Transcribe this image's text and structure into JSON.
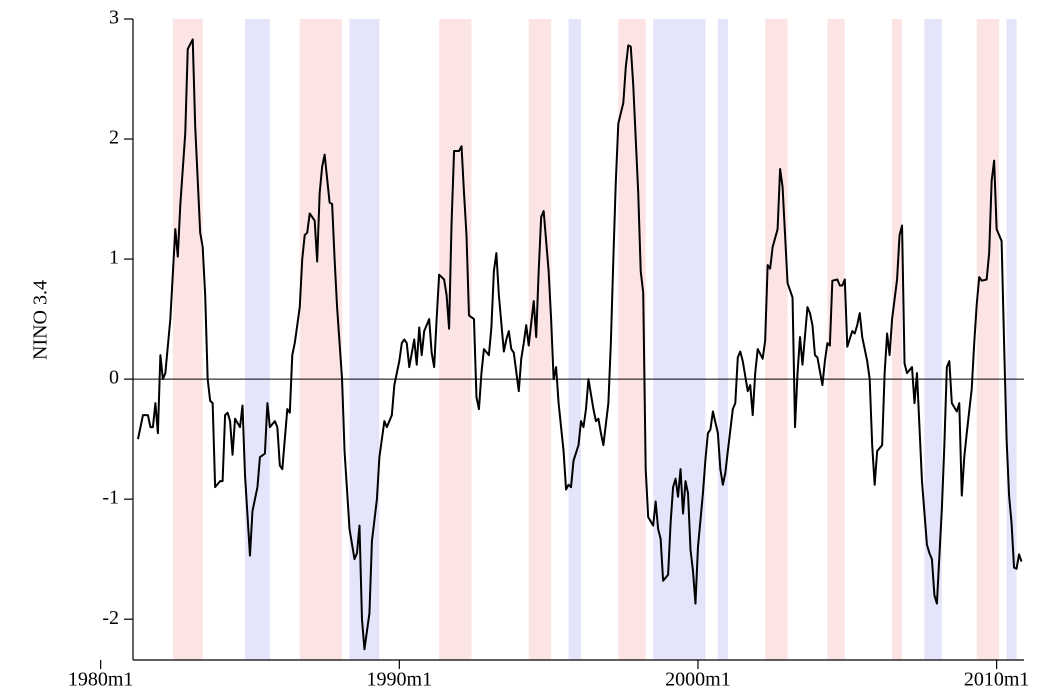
{
  "chart_data": {
    "type": "line",
    "ylabel": "NINO 3.4",
    "color": "#000000",
    "xlim": [
      253,
      611
    ],
    "ylim": [
      -2.34,
      3
    ],
    "xticks": [
      {
        "value": 240,
        "label": "1980m1"
      },
      {
        "value": 360,
        "label": "1990m1"
      },
      {
        "value": 480,
        "label": "2000m1"
      },
      {
        "value": 600,
        "label": "2010m1"
      }
    ],
    "yticks": [
      -2,
      -1,
      0,
      1,
      2,
      3
    ],
    "yline": 0,
    "bands": [
      {
        "start": 269,
        "end": 281,
        "color": "#fde4e4"
      },
      {
        "start": 298,
        "end": 308,
        "color": "#e4e4fa"
      },
      {
        "start": 320,
        "end": 337,
        "color": "#fde4e4"
      },
      {
        "start": 340,
        "end": 352,
        "color": "#e4e4fa"
      },
      {
        "start": 376,
        "end": 389,
        "color": "#fde4e4"
      },
      {
        "start": 412,
        "end": 421,
        "color": "#fde4e4"
      },
      {
        "start": 428,
        "end": 433,
        "color": "#e4e4fa"
      },
      {
        "start": 448,
        "end": 459,
        "color": "#fde4e4"
      },
      {
        "start": 462,
        "end": 483,
        "color": "#e4e4fa"
      },
      {
        "start": 488,
        "end": 492,
        "color": "#e4e4fa"
      },
      {
        "start": 507,
        "end": 516,
        "color": "#fde4e4"
      },
      {
        "start": 532,
        "end": 539,
        "color": "#fde4e4"
      },
      {
        "start": 558,
        "end": 562,
        "color": "#fde4e4"
      },
      {
        "start": 571,
        "end": 578,
        "color": "#e4e4fa"
      },
      {
        "start": 592,
        "end": 601,
        "color": "#fde4e4"
      },
      {
        "start": 604,
        "end": 608,
        "color": "#e4e4fa"
      }
    ],
    "x": [
      255,
      257,
      259,
      260,
      261,
      262,
      263,
      264,
      265,
      266,
      268,
      270,
      271,
      272,
      274,
      275,
      277,
      278,
      280,
      281,
      282,
      283,
      284,
      285,
      286,
      288,
      289,
      290,
      291,
      292,
      293,
      294,
      296,
      297,
      298,
      300,
      301,
      302,
      303,
      304,
      306,
      307,
      308,
      310,
      311,
      312,
      313,
      315,
      316,
      317,
      318,
      320,
      321,
      322,
      323,
      324,
      326,
      327,
      328,
      329,
      330,
      332,
      333,
      334,
      335,
      337,
      338,
      340,
      342,
      343,
      344,
      345,
      346,
      348,
      349,
      351,
      352,
      354,
      355,
      356,
      357,
      358,
      360,
      361,
      362,
      363,
      364,
      366,
      367,
      368,
      369,
      370,
      372,
      373,
      374,
      375,
      376,
      378,
      379,
      380,
      381,
      382,
      384,
      385,
      386,
      387,
      388,
      390,
      391,
      392,
      393,
      394,
      396,
      397,
      398,
      399,
      400,
      402,
      403,
      404,
      405,
      406,
      408,
      409,
      410,
      411,
      412,
      414,
      415,
      416,
      417,
      418,
      420,
      421,
      422,
      423,
      424,
      426,
      427,
      428,
      429,
      430,
      432,
      433,
      434,
      435,
      436,
      438,
      439,
      440,
      441,
      442,
      444,
      445,
      446,
      447,
      448,
      450,
      451,
      452,
      453,
      454,
      456,
      457,
      458,
      459,
      460,
      462,
      463,
      464,
      465,
      466,
      468,
      469,
      470,
      471,
      472,
      473,
      474,
      475,
      476,
      477,
      478,
      479,
      480,
      482,
      483,
      484,
      485,
      486,
      488,
      489,
      490,
      491,
      492,
      494,
      495,
      496,
      497,
      498,
      500,
      501,
      502,
      503,
      504,
      506,
      507,
      508,
      509,
      510,
      512,
      513,
      514,
      515,
      516,
      518,
      519,
      520,
      521,
      522,
      524,
      525,
      526,
      527,
      528,
      530,
      531,
      532,
      533,
      534,
      536,
      537,
      538,
      539,
      540,
      542,
      543,
      544,
      545,
      546,
      548,
      549,
      550,
      551,
      552,
      554,
      555,
      556,
      557,
      558,
      560,
      561,
      562,
      563,
      564,
      566,
      567,
      568,
      569,
      570,
      572,
      573,
      574,
      575,
      576,
      578,
      579,
      580,
      581,
      582,
      584,
      585,
      586,
      587,
      588,
      590,
      591,
      592,
      593,
      594,
      596,
      597,
      598,
      599,
      600,
      602,
      603,
      604,
      605,
      606,
      607,
      608,
      609,
      610
    ],
    "values": [
      -0.5,
      -0.3,
      -0.3,
      -0.4,
      -0.4,
      -0.2,
      -0.45,
      0.2,
      0.0,
      0.05,
      0.5,
      1.25,
      1.02,
      1.45,
      2.05,
      2.75,
      2.83,
      2.1,
      1.22,
      1.1,
      0.7,
      0,
      -0.18,
      -0.2,
      -0.9,
      -0.85,
      -0.85,
      -0.3,
      -0.28,
      -0.35,
      -0.63,
      -0.33,
      -0.4,
      -0.22,
      -0.8,
      -1.47,
      -1.1,
      -1,
      -0.9,
      -0.65,
      -0.62,
      -0.2,
      -0.4,
      -0.35,
      -0.4,
      -0.72,
      -0.75,
      -0.25,
      -0.28,
      0.2,
      0.3,
      0.6,
      1.0,
      1.2,
      1.22,
      1.38,
      1.32,
      0.98,
      1.55,
      1.77,
      1.87,
      1.47,
      1.46,
      1.0,
      0.6,
      0,
      -0.6,
      -1.25,
      -1.5,
      -1.45,
      -1.22,
      -2.0,
      -2.25,
      -1.95,
      -1.35,
      -1.0,
      -0.65,
      -0.35,
      -0.4,
      -0.35,
      -0.3,
      -0.05,
      0.15,
      0.3,
      0.33,
      0.3,
      0.1,
      0.33,
      0.12,
      0.43,
      0.2,
      0.4,
      0.5,
      0.22,
      0.1,
      0.5,
      0.87,
      0.83,
      0.7,
      0.42,
      1.3,
      1.9,
      1.9,
      1.94,
      1.55,
      1.2,
      0.53,
      0.5,
      -0.15,
      -0.25,
      0.05,
      0.25,
      0.2,
      0.43,
      0.9,
      1.05,
      0.7,
      0.23,
      0.33,
      0.4,
      0.25,
      0.22,
      -0.1,
      0.17,
      0.3,
      0.45,
      0.28,
      0.65,
      0.35,
      0.9,
      1.35,
      1.4,
      0.9,
      0.5,
      0,
      0.1,
      -0.2,
      -0.6,
      -0.92,
      -0.88,
      -0.9,
      -0.68,
      -0.55,
      -0.35,
      -0.4,
      -0.25,
      0,
      -0.25,
      -0.35,
      -0.33,
      -0.45,
      -0.55,
      -0.2,
      0.3,
      1.0,
      1.65,
      2.13,
      2.3,
      2.6,
      2.78,
      2.77,
      2.45,
      1.55,
      0.9,
      0.72,
      -0.75,
      -1.15,
      -1.22,
      -1.02,
      -1.25,
      -1.33,
      -1.68,
      -1.63,
      -1.2,
      -0.9,
      -0.83,
      -0.98,
      -0.75,
      -1.12,
      -0.85,
      -0.95,
      -1.42,
      -1.6,
      -1.87,
      -1.4,
      -0.95,
      -0.67,
      -0.45,
      -0.42,
      -0.27,
      -0.45,
      -0.75,
      -0.88,
      -0.78,
      -0.6,
      -0.25,
      -0.2,
      0.18,
      0.23,
      0.15,
      -0.1,
      -0.05,
      -0.3,
      0.05,
      0.25,
      0.17,
      0.32,
      0.95,
      0.92,
      1.1,
      1.25,
      1.75,
      1.6,
      1.2,
      0.8,
      0.68,
      -0.4,
      0.05,
      0.35,
      0.12,
      0.6,
      0.55,
      0.45,
      0.2,
      0.18,
      -0.05,
      0.15,
      0.3,
      0.28,
      0.82,
      0.83,
      0.78,
      0.78,
      0.83,
      0.27,
      0.4,
      0.38,
      0.45,
      0.55,
      0.35,
      0.15,
      0,
      -0.55,
      -0.88,
      -0.6,
      -0.55,
      0.05,
      0.38,
      0.2,
      0.5,
      0.83,
      1.2,
      1.28,
      0.13,
      0.05,
      0.1,
      -0.2,
      0.05,
      -0.4,
      -0.85,
      -1.38,
      -1.45,
      -1.5,
      -1.8,
      -1.87,
      -1.08,
      -0.55,
      0.1,
      0.15,
      -0.2,
      -0.27,
      -0.2,
      -0.97,
      -0.65,
      -0.45,
      -0.08,
      0.3,
      0.62,
      0.85,
      0.82,
      0.83,
      1.05,
      1.65,
      1.82,
      1.25,
      1.15,
      0.3,
      -0.5,
      -0.97,
      -1.2,
      -1.57,
      -1.58,
      -1.46,
      -1.52
    ]
  }
}
